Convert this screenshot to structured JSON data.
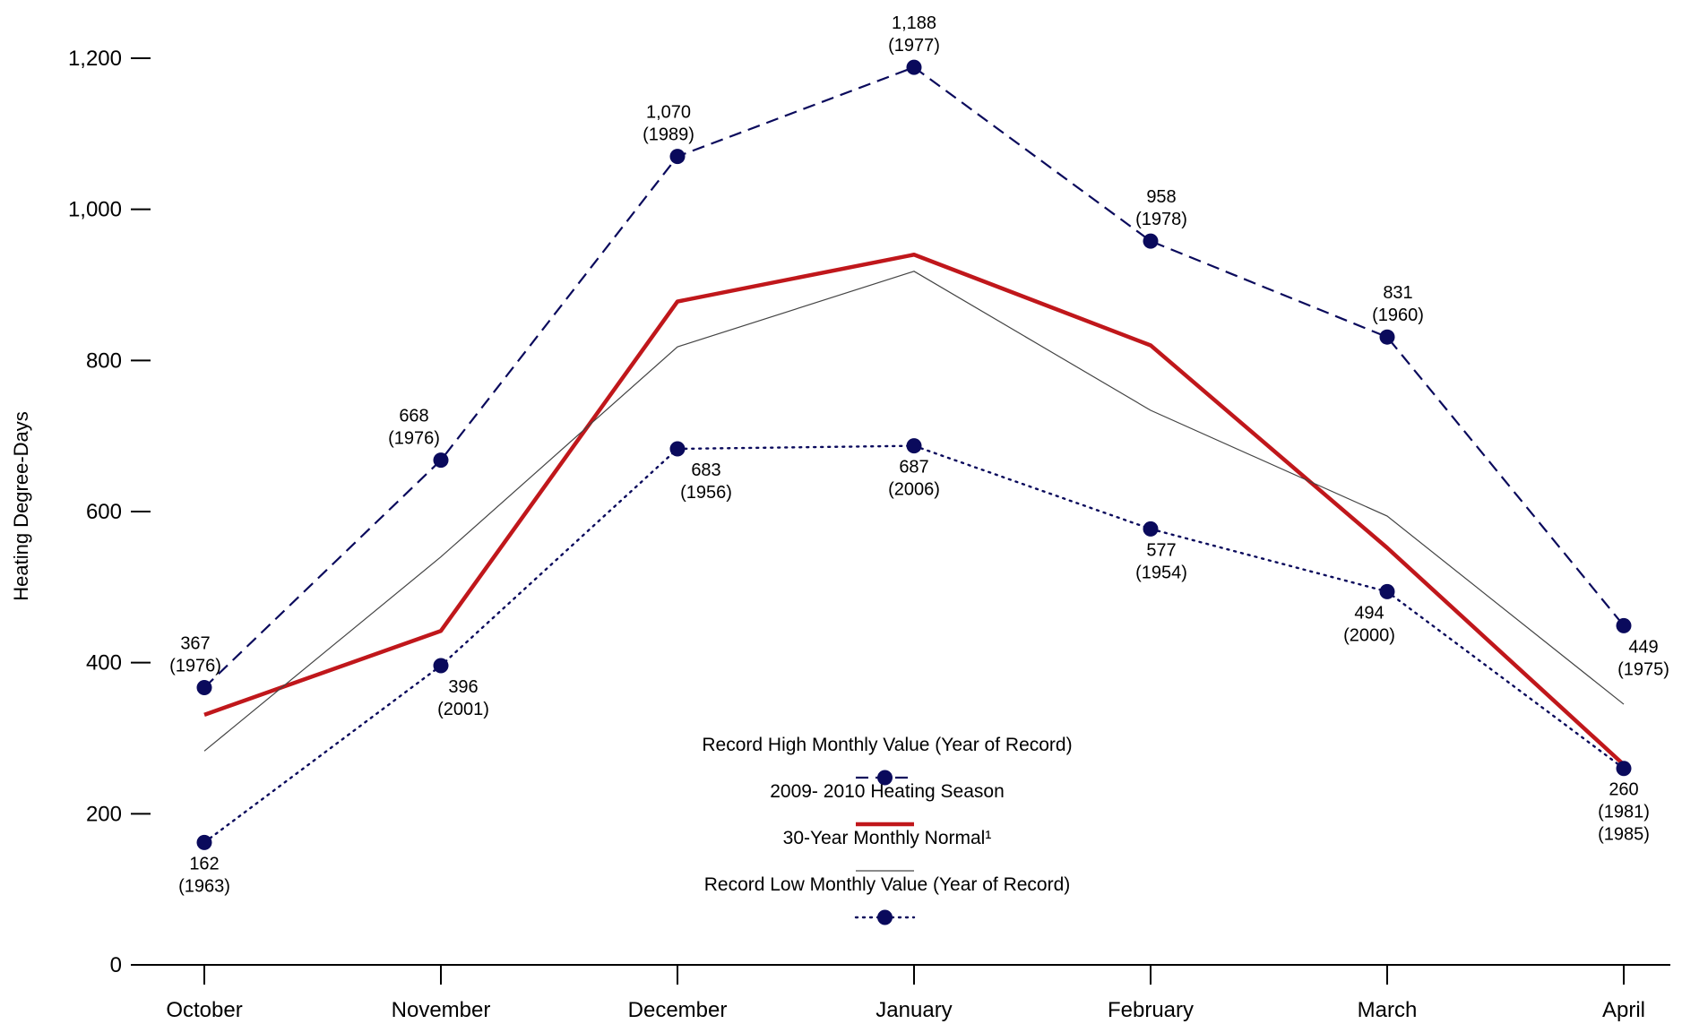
{
  "chart_data": {
    "type": "line",
    "title": "",
    "xlabel": "",
    "ylabel": "Heating Degree-Days",
    "categories": [
      "October",
      "November",
      "December",
      "January",
      "February",
      "March",
      "April"
    ],
    "ylim": [
      0,
      1200
    ],
    "y_ticks": [
      0,
      200,
      400,
      600,
      800,
      1000,
      1200
    ],
    "y_tick_labels": [
      "0",
      "200",
      "400",
      "600",
      "800",
      "1,000",
      "1,200"
    ],
    "grid": false,
    "legend_position": "bottom-center",
    "series": [
      {
        "name": "Record High Monthly Value (Year of Record)",
        "style": "dashed-markers",
        "color": "#0a0a5c",
        "values": [
          367,
          668,
          1070,
          1188,
          958,
          831,
          449
        ],
        "labels": [
          "367",
          "668",
          "1,070",
          "1,188",
          "958",
          "831",
          "449"
        ],
        "years": [
          [
            "(1976)"
          ],
          [
            "(1976)"
          ],
          [
            "(1989)"
          ],
          [
            "(1977)"
          ],
          [
            "(1978)"
          ],
          [
            "(1960)"
          ],
          [
            "(1975)"
          ]
        ]
      },
      {
        "name": "2009- 2010 Heating Season",
        "style": "solid-thick",
        "color": "#c0171b",
        "values": [
          331,
          442,
          878,
          940,
          820,
          552,
          265
        ]
      },
      {
        "name": "30-Year Monthly Normal¹",
        "style": "solid-thin",
        "color": "#444444",
        "values": [
          283,
          540,
          818,
          918,
          734,
          594,
          345
        ]
      },
      {
        "name": "Record Low Monthly Value (Year of Record)",
        "style": "dotted-markers",
        "color": "#0a0a5c",
        "values": [
          162,
          396,
          683,
          687,
          577,
          494,
          260
        ],
        "labels": [
          "162",
          "396",
          "683",
          "687",
          "577",
          "494",
          "260"
        ],
        "years": [
          [
            "(1963)"
          ],
          [
            "(2001)"
          ],
          [
            "(1956)"
          ],
          [
            "(2006)"
          ],
          [
            "(1954)"
          ],
          [
            "(2000)"
          ],
          [
            "(1981)",
            "(1985)"
          ]
        ]
      }
    ]
  }
}
